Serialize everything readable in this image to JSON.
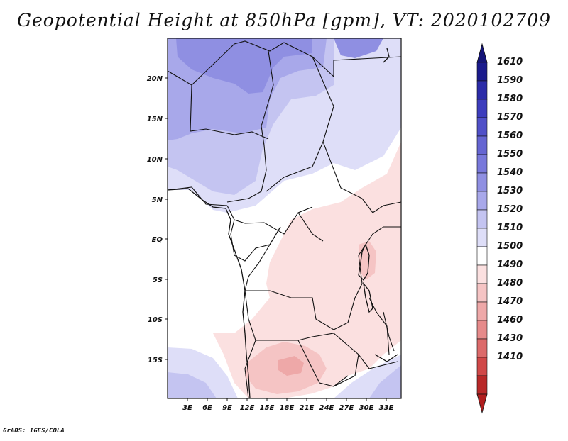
{
  "title": "Geopotential Height at 850hPa [gpm], VT: 2020102709",
  "credit": "GrADS: IGES/COLA",
  "lat_labels": [
    "20N",
    "15N",
    "10N",
    "5N",
    "EQ",
    "5S",
    "10S",
    "15S"
  ],
  "lon_labels": [
    "3E",
    "6E",
    "9E",
    "12E",
    "15E",
    "18E",
    "21E",
    "24E",
    "27E",
    "30E",
    "33E"
  ],
  "colorbar": {
    "labels": [
      "1610",
      "1590",
      "1580",
      "1570",
      "1560",
      "1550",
      "1540",
      "1530",
      "1520",
      "1510",
      "1500",
      "1490",
      "1480",
      "1470",
      "1460",
      "1430",
      "1410"
    ],
    "colors": [
      "#1a1a8c",
      "#2b2ba8",
      "#3d3dbd",
      "#5050c8",
      "#6565d2",
      "#7878db",
      "#8f8fe2",
      "#a8a8ea",
      "#c4c4f1",
      "#dedef8",
      "#ffffff",
      "#fbe0e0",
      "#f5c4c4",
      "#eea8a8",
      "#e68a8a",
      "#dc6a6a",
      "#d04848",
      "#b82828"
    ],
    "top_color": "#141478",
    "bottom_color": "#b01e1e"
  }
}
